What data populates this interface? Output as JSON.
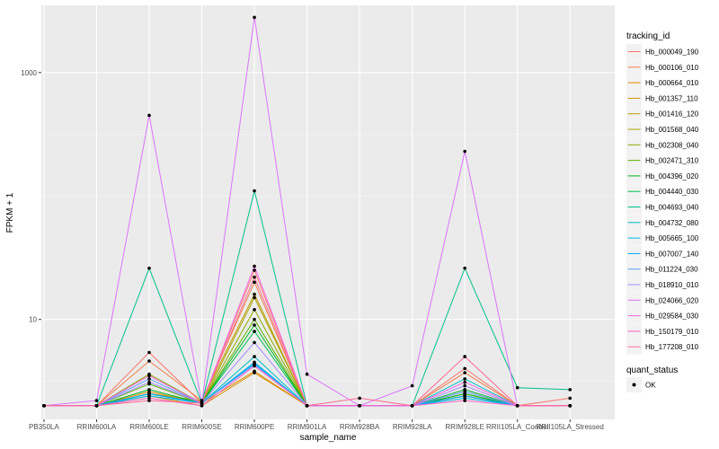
{
  "chart_data": {
    "type": "line",
    "xlabel": "sample_name",
    "ylabel": "FPKM + 1",
    "y_scale": "log10",
    "ylim": [
      1.55,
      3500
    ],
    "y_ticks": [
      {
        "value": 10,
        "label": "10"
      },
      {
        "value": 1000,
        "label": "1000"
      }
    ],
    "categories": [
      "PB350LA",
      "RRIM600LA",
      "RRIM600LE",
      "RRIM600SE",
      "RRIM600PE",
      "RRIM901LA",
      "RRIM928BA",
      "RRIM928LA",
      "RRIM928LE",
      "RRII105LA_Control",
      "RRII105LA_Stressed"
    ],
    "grid": true,
    "legend_position": "right",
    "legend_title": "tracking_id",
    "series": [
      {
        "name": "Hb_000049_190",
        "color": "#F8766D",
        "values": [
          2,
          2,
          5.4,
          2.1,
          25,
          2,
          2,
          2,
          4,
          2,
          2.3
        ]
      },
      {
        "name": "Hb_000106_010",
        "color": "#EF7F48",
        "values": [
          2,
          2,
          4.6,
          2.2,
          20,
          2,
          2,
          2,
          3.7,
          2,
          2
        ]
      },
      {
        "name": "Hb_000664_010",
        "color": "#E38900",
        "values": [
          2,
          2,
          2.6,
          2.1,
          3.8,
          2,
          2,
          2,
          2.7,
          2,
          2
        ]
      },
      {
        "name": "Hb_001357_110",
        "color": "#D39200",
        "values": [
          2,
          2,
          2.4,
          2.0,
          3.7,
          2,
          2,
          2,
          2.5,
          2,
          2
        ]
      },
      {
        "name": "Hb_001416_120",
        "color": "#C09B00",
        "values": [
          2,
          2,
          2.5,
          2.2,
          16,
          2,
          2,
          2,
          2.4,
          2,
          2
        ]
      },
      {
        "name": "Hb_001568_040",
        "color": "#A8A400",
        "values": [
          2,
          2,
          2.5,
          2.1,
          15,
          2,
          2,
          2,
          2.4,
          2,
          2
        ]
      },
      {
        "name": "Hb_002308_040",
        "color": "#8AAB00",
        "values": [
          2,
          2,
          3.6,
          2.1,
          12,
          2,
          2,
          2,
          2.5,
          2,
          2
        ]
      },
      {
        "name": "Hb_002471_310",
        "color": "#5EB300",
        "values": [
          2,
          2,
          3.0,
          2.1,
          10,
          2,
          2,
          2,
          2.4,
          2,
          2
        ]
      },
      {
        "name": "Hb_004396_020",
        "color": "#00B81F",
        "values": [
          2,
          2,
          2.7,
          2.1,
          9,
          2,
          2,
          2,
          2.5,
          2,
          2
        ]
      },
      {
        "name": "Hb_004440_030",
        "color": "#00BB4E",
        "values": [
          2,
          2,
          2.5,
          2.1,
          8,
          2,
          2,
          2,
          2.7,
          2,
          2
        ]
      },
      {
        "name": "Hb_004693_040",
        "color": "#00C08B",
        "values": [
          2,
          2,
          26,
          2.1,
          110,
          2,
          2,
          2,
          26,
          2.8,
          2.7
        ]
      },
      {
        "name": "Hb_004732_080",
        "color": "#00BFC4",
        "values": [
          2,
          2,
          2.5,
          2.1,
          5,
          2,
          2,
          2,
          3.3,
          2,
          2
        ]
      },
      {
        "name": "Hb_005665_100",
        "color": "#00B8E7",
        "values": [
          2,
          2,
          2.4,
          2.1,
          4.5,
          2,
          2,
          2,
          2.3,
          2,
          2
        ]
      },
      {
        "name": "Hb_007007_140",
        "color": "#00A9FF",
        "values": [
          2,
          2,
          2.5,
          2.1,
          4.4,
          2,
          2,
          2,
          2.4,
          2,
          2
        ]
      },
      {
        "name": "Hb_011224_030",
        "color": "#619CFF",
        "values": [
          2,
          2,
          3.3,
          2.1,
          4.3,
          2,
          2,
          2,
          2.6,
          2,
          2
        ]
      },
      {
        "name": "Hb_018910_010",
        "color": "#A58AFF",
        "values": [
          2,
          2,
          3.1,
          2.1,
          6.5,
          2,
          2,
          2,
          2.9,
          2,
          2
        ]
      },
      {
        "name": "Hb_024066_020",
        "color": "#DB72FB",
        "values": [
          2,
          2.2,
          450,
          2.1,
          2800,
          3.6,
          2,
          2.9,
          230,
          2,
          2
        ]
      },
      {
        "name": "Hb_029584_030",
        "color": "#F564E3",
        "values": [
          2,
          2,
          3.5,
          2.1,
          27,
          2,
          2,
          2,
          3.1,
          2,
          2
        ]
      },
      {
        "name": "Hb_150179_010",
        "color": "#FF61C3",
        "values": [
          2,
          2,
          2.3,
          2.0,
          4.2,
          2,
          2,
          2,
          2.2,
          2,
          2
        ]
      },
      {
        "name": "Hb_177208_010",
        "color": "#FF6C91",
        "values": [
          2,
          2,
          2.2,
          2.1,
          22,
          2,
          2.3,
          2,
          5,
          2,
          2
        ]
      }
    ],
    "points_legend_title": "quant_status",
    "points_legend_label": "OK"
  }
}
